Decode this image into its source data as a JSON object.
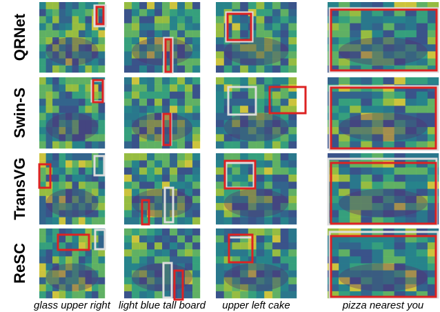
{
  "row_labels": [
    "QRNet",
    "Swin-S",
    "TransVG",
    "ReSC"
  ],
  "column_captions": [
    "glass upper right",
    "light blue tall board",
    "upper left cake",
    "pizza nearest you"
  ]
}
